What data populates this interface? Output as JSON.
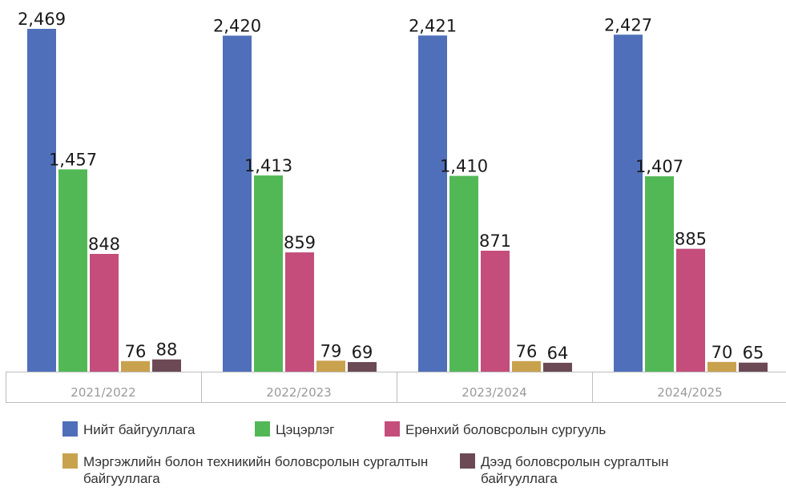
{
  "chart_data": {
    "type": "bar",
    "categories": [
      "2021/2022",
      "2022/2023",
      "2023/2024",
      "2024/2025"
    ],
    "series": [
      {
        "name": "Нийт байгууллага",
        "color": "#4f6fba",
        "values": [
          2469,
          2420,
          2421,
          2427
        ],
        "labels": [
          "2,469",
          "2,420",
          "2,421",
          "2,427"
        ]
      },
      {
        "name": "Цэцэрлэг",
        "color": "#52b856",
        "values": [
          1457,
          1413,
          1410,
          1407
        ],
        "labels": [
          "1,457",
          "1,413",
          "1,410",
          "1,407"
        ]
      },
      {
        "name": "Ерөнхий боловсролын сургууль",
        "color": "#c44d7b",
        "values": [
          848,
          859,
          871,
          885
        ],
        "labels": [
          "848",
          "859",
          "871",
          "885"
        ]
      },
      {
        "name": "Мэргэжлийн болон техникийн боловсролын сургалтын байгууллага",
        "color": "#c9a24e",
        "values": [
          76,
          79,
          76,
          70
        ],
        "labels": [
          "76",
          "79",
          "76",
          "70"
        ]
      },
      {
        "name": "Дээд боловсролын сургалтын байгууллага",
        "color": "#6b4a55",
        "values": [
          88,
          69,
          64,
          65
        ],
        "labels": [
          "88",
          "69",
          "64",
          "65"
        ]
      }
    ],
    "ylim": [
      0,
      2469
    ],
    "grid": false,
    "legend_position": "bottom"
  }
}
